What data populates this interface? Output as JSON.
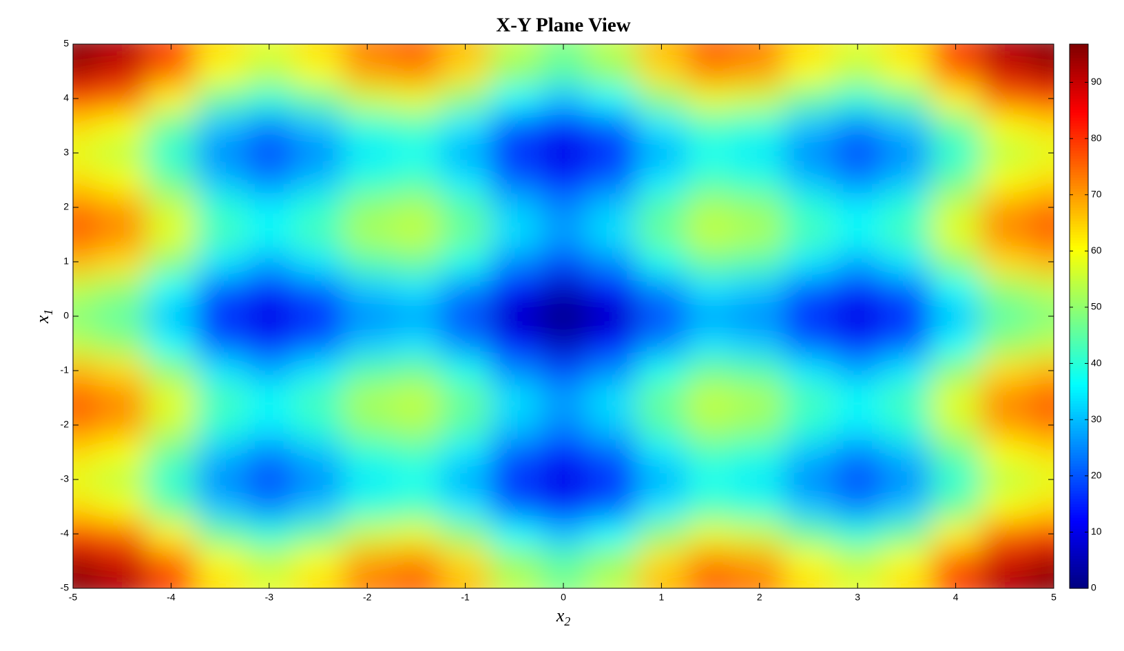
{
  "chart_data": {
    "type": "contour",
    "title": "X-Y Plane View",
    "xlabel": {
      "base": "x",
      "sub": "2"
    },
    "ylabel": {
      "base": "x",
      "sub": "1"
    },
    "x": [
      -5,
      -4.5,
      -4,
      -3.5,
      -3,
      -2.5,
      -2,
      -1.5,
      -1,
      -0.5,
      0,
      0.5,
      1,
      1.5,
      2,
      2.5,
      3,
      3.5,
      4,
      4.5,
      5
    ],
    "y": [
      -5,
      -4.5,
      -4,
      -3.5,
      -3,
      -2.5,
      -2,
      -1.5,
      -1,
      -0.5,
      0,
      0.5,
      1,
      1.5,
      2,
      2.5,
      3,
      3.5,
      4,
      4.5,
      5
    ],
    "z": [
      [
        96.8,
        92.9,
        79.0,
        63.8,
        57.9,
        63.8,
        73.4,
        75.9,
        67.4,
        54.5,
        48.4,
        54.5,
        67.4,
        75.9,
        73.4,
        63.8,
        57.9,
        63.8,
        79.0,
        92.9,
        96.8
      ],
      [
        92.9,
        89.0,
        75.1,
        59.9,
        54.0,
        59.9,
        69.5,
        72.0,
        63.5,
        50.6,
        44.5,
        50.6,
        63.5,
        72.0,
        69.5,
        59.9,
        54.0,
        59.9,
        75.1,
        89.0,
        92.9
      ],
      [
        79.0,
        75.1,
        61.2,
        46.0,
        40.1,
        46.0,
        55.6,
        58.1,
        49.6,
        36.7,
        30.6,
        36.7,
        49.6,
        58.1,
        55.6,
        46.0,
        40.1,
        46.0,
        61.2,
        75.1,
        79.0
      ],
      [
        63.8,
        59.9,
        46.0,
        30.8,
        24.9,
        30.8,
        40.4,
        42.9,
        34.4,
        21.5,
        15.4,
        21.5,
        34.4,
        42.9,
        40.4,
        30.8,
        24.9,
        30.8,
        46.0,
        59.9,
        63.8
      ],
      [
        57.9,
        54.0,
        40.1,
        24.9,
        19.0,
        24.9,
        34.5,
        37.0,
        28.5,
        15.6,
        9.5,
        15.6,
        28.5,
        37.0,
        34.5,
        24.9,
        19.0,
        24.9,
        40.1,
        54.0,
        57.9
      ],
      [
        63.8,
        59.9,
        46.0,
        30.8,
        24.9,
        30.8,
        40.4,
        42.9,
        34.4,
        21.5,
        15.4,
        21.5,
        34.4,
        42.9,
        40.4,
        30.8,
        24.9,
        30.8,
        46.0,
        59.9,
        63.8
      ],
      [
        73.4,
        69.5,
        55.6,
        40.4,
        34.5,
        40.4,
        50.0,
        52.5,
        44.0,
        31.1,
        25.0,
        31.1,
        44.0,
        52.5,
        50.0,
        40.4,
        34.5,
        40.4,
        55.6,
        69.5,
        73.4
      ],
      [
        75.9,
        72.0,
        58.1,
        42.9,
        37.0,
        42.9,
        52.5,
        55.0,
        46.5,
        33.6,
        27.5,
        33.6,
        46.5,
        55.0,
        52.5,
        42.9,
        37.0,
        42.9,
        58.1,
        72.0,
        75.9
      ],
      [
        67.4,
        63.5,
        49.6,
        34.4,
        28.5,
        34.4,
        44.0,
        46.5,
        38.0,
        25.1,
        19.0,
        25.1,
        38.0,
        46.5,
        44.0,
        34.4,
        28.5,
        34.4,
        49.6,
        63.5,
        67.4
      ],
      [
        54.5,
        50.6,
        36.7,
        21.5,
        15.6,
        21.5,
        31.1,
        33.6,
        25.1,
        12.2,
        6.1,
        12.2,
        25.1,
        33.6,
        31.1,
        21.5,
        15.6,
        21.5,
        36.7,
        50.6,
        54.5
      ],
      [
        48.4,
        44.5,
        30.6,
        15.4,
        9.5,
        15.4,
        25.0,
        27.5,
        19.0,
        6.1,
        0,
        6.1,
        19.0,
        27.5,
        25.0,
        15.4,
        9.5,
        15.4,
        30.6,
        44.5,
        48.4
      ],
      [
        54.5,
        50.6,
        36.7,
        21.5,
        15.6,
        21.5,
        31.1,
        33.6,
        25.1,
        12.2,
        6.1,
        12.2,
        25.1,
        33.6,
        31.1,
        21.5,
        15.6,
        21.5,
        36.7,
        50.6,
        54.5
      ],
      [
        67.4,
        63.5,
        49.6,
        34.4,
        28.5,
        34.4,
        44.0,
        46.5,
        38.0,
        25.1,
        19.0,
        25.1,
        38.0,
        46.5,
        44.0,
        34.4,
        28.5,
        34.4,
        49.6,
        63.5,
        67.4
      ],
      [
        75.9,
        72.0,
        58.1,
        42.9,
        37.0,
        42.9,
        52.5,
        55.0,
        46.5,
        33.6,
        27.5,
        33.6,
        46.5,
        55.0,
        52.5,
        42.9,
        37.0,
        42.9,
        58.1,
        72.0,
        75.9
      ],
      [
        73.4,
        69.5,
        55.6,
        40.4,
        34.5,
        40.4,
        50.0,
        52.5,
        44.0,
        31.1,
        25.0,
        31.1,
        44.0,
        52.5,
        50.0,
        40.4,
        34.5,
        40.4,
        55.6,
        69.5,
        73.4
      ],
      [
        63.8,
        59.9,
        46.0,
        30.8,
        24.9,
        30.8,
        40.4,
        42.9,
        34.4,
        21.5,
        15.4,
        21.5,
        34.4,
        42.9,
        40.4,
        30.8,
        24.9,
        30.8,
        46.0,
        59.9,
        63.8
      ],
      [
        57.9,
        54.0,
        40.1,
        24.9,
        19.0,
        24.9,
        34.5,
        37.0,
        28.5,
        15.6,
        9.5,
        15.6,
        28.5,
        37.0,
        34.5,
        24.9,
        19.0,
        24.9,
        40.1,
        54.0,
        57.9
      ],
      [
        63.8,
        59.9,
        46.0,
        30.8,
        24.9,
        30.8,
        40.4,
        42.9,
        34.4,
        21.5,
        15.4,
        21.5,
        34.4,
        42.9,
        40.4,
        30.8,
        24.9,
        30.8,
        46.0,
        59.9,
        63.8
      ],
      [
        79.0,
        75.1,
        61.2,
        46.0,
        40.1,
        46.0,
        55.6,
        58.1,
        49.6,
        36.7,
        30.6,
        36.7,
        49.6,
        58.1,
        55.6,
        46.0,
        40.1,
        46.0,
        61.2,
        75.1,
        79.0
      ],
      [
        92.9,
        89.0,
        75.1,
        59.9,
        54.0,
        59.9,
        69.5,
        72.0,
        63.5,
        50.6,
        44.5,
        50.6,
        63.5,
        72.0,
        69.5,
        59.9,
        54.0,
        59.9,
        75.1,
        89.0,
        92.9
      ],
      [
        96.8,
        92.9,
        79.0,
        63.8,
        57.9,
        63.8,
        73.4,
        75.9,
        67.4,
        54.5,
        48.4,
        54.5,
        67.4,
        75.9,
        73.4,
        63.8,
        57.9,
        63.8,
        79.0,
        92.9,
        96.8
      ]
    ],
    "colormap": "jet",
    "xlim": [
      -5,
      5
    ],
    "ylim": [
      -5,
      5
    ],
    "xticks": [
      -5,
      -4,
      -3,
      -2,
      -1,
      0,
      1,
      2,
      3,
      4,
      5
    ],
    "yticks": [
      -5,
      -4,
      -3,
      -2,
      -1,
      0,
      1,
      2,
      3,
      4,
      5
    ],
    "zlim": [
      0,
      96.8
    ],
    "zticks": [
      0,
      10,
      20,
      30,
      40,
      50,
      60,
      70,
      80,
      90
    ]
  }
}
